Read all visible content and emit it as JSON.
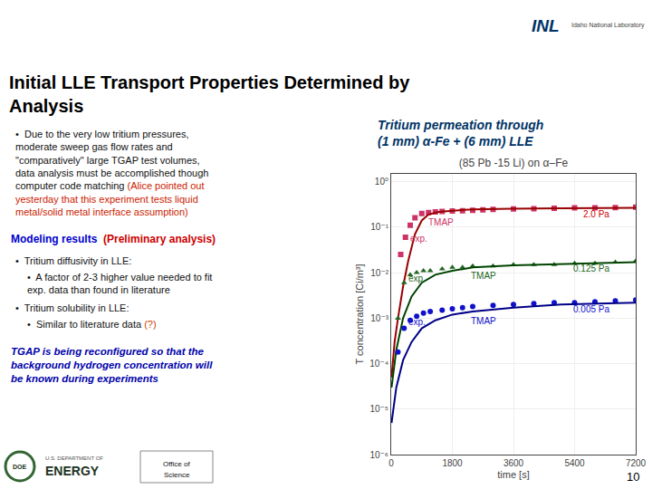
{
  "chart_data": {
    "type": "scatter",
    "title": "(85 Pb -15 Li) on α–Fe",
    "x_label": "time [s]",
    "y_label": "T concentration [Ci/m³]",
    "log": "y",
    "grid": true,
    "xlim": [
      0,
      7200
    ],
    "xticks": [
      0,
      1800,
      3600,
      5400,
      7200
    ],
    "ylim": [
      1e-06,
      1.5
    ],
    "yticks": [
      {
        "value": 1e-06,
        "label": "10⁻⁶"
      },
      {
        "value": 1e-05,
        "label": "10⁻⁵"
      },
      {
        "value": 0.0001,
        "label": "10⁻⁴"
      },
      {
        "value": 0.001,
        "label": "10⁻³"
      },
      {
        "value": 0.01,
        "label": "10⁻²"
      },
      {
        "value": 0.1,
        "label": "10⁻¹"
      },
      {
        "value": 1,
        "label": "10⁰"
      }
    ],
    "series": [
      {
        "type": "scatter",
        "color": "#cc3366",
        "marker": "square",
        "x": [
          280,
          420,
          560,
          700,
          900,
          1100,
          1300,
          1500,
          1800,
          2100,
          2400,
          2700,
          3000,
          3600,
          4200,
          4800,
          5400,
          6000,
          6600,
          7200
        ],
        "values": [
          0.025,
          0.06,
          0.11,
          0.16,
          0.2,
          0.21,
          0.215,
          0.22,
          0.225,
          0.23,
          0.235,
          0.24,
          0.245,
          0.25,
          0.255,
          0.26,
          0.265,
          0.265,
          0.27,
          0.275
        ]
      },
      {
        "type": "line",
        "color": "#990000",
        "line_style": "solid",
        "x": [
          10,
          100,
          200,
          350,
          500,
          700,
          900,
          1100,
          1400,
          1800,
          2400,
          3500,
          5000,
          7200
        ],
        "values": [
          5e-05,
          0.0003,
          0.001,
          0.005,
          0.018,
          0.07,
          0.14,
          0.19,
          0.215,
          0.23,
          0.245,
          0.255,
          0.26,
          0.265
        ]
      },
      {
        "type": "scatter",
        "color": "#226622",
        "marker": "triangle",
        "x": [
          200,
          380,
          560,
          750,
          950,
          1150,
          1500,
          1800,
          2100,
          2400,
          3000,
          3600,
          4200,
          4800,
          5400,
          6000,
          6600,
          7200
        ],
        "values": [
          0.001,
          0.006,
          0.009,
          0.01,
          0.011,
          0.011,
          0.012,
          0.013,
          0.013,
          0.014,
          0.014,
          0.015,
          0.015,
          0.015,
          0.016,
          0.016,
          0.017,
          0.018
        ]
      },
      {
        "type": "line",
        "color": "#004400",
        "line_style": "solid",
        "x": [
          10,
          150,
          350,
          600,
          900,
          1300,
          1800,
          2400,
          3600,
          5000,
          7200
        ],
        "values": [
          3e-05,
          0.0002,
          0.001,
          0.003,
          0.006,
          0.009,
          0.011,
          0.013,
          0.0145,
          0.0155,
          0.017
        ]
      },
      {
        "type": "scatter",
        "color": "#1111cc",
        "marker": "circle",
        "x": [
          200,
          380,
          560,
          750,
          950,
          1150,
          1500,
          1800,
          2100,
          2400,
          3000,
          3600,
          4200,
          4800,
          5400,
          6000,
          6600,
          7200
        ],
        "values": [
          0.00018,
          0.0006,
          0.0009,
          0.0011,
          0.0013,
          0.0014,
          0.0015,
          0.0016,
          0.0017,
          0.0018,
          0.0019,
          0.002,
          0.0021,
          0.0022,
          0.0022,
          0.0023,
          0.0024,
          0.0025
        ]
      },
      {
        "type": "line",
        "color": "#000088",
        "line_style": "solid",
        "x": [
          10,
          150,
          350,
          600,
          900,
          1300,
          1800,
          2400,
          3600,
          5000,
          7200
        ],
        "values": [
          5e-06,
          3e-05,
          0.00012,
          0.0003,
          0.0006,
          0.0009,
          0.0012,
          0.0014,
          0.0017,
          0.002,
          0.0022
        ]
      }
    ],
    "annotations": [
      {
        "text": "exp.",
        "x": 500,
        "y": 0.055,
        "color": "#cc3366"
      },
      {
        "text": "TMAP",
        "x": 1050,
        "y": 0.13,
        "color": "#cc3366"
      },
      {
        "text": "2.0 Pa",
        "x": 5600,
        "y": 0.195,
        "color": "#cc0000"
      },
      {
        "text": "exp.",
        "x": 450,
        "y": 0.0076,
        "color": "#226622"
      },
      {
        "text": "TMAP",
        "x": 2300,
        "y": 0.0085,
        "color": "#226622"
      },
      {
        "text": "0.125 Pa",
        "x": 5300,
        "y": 0.0125,
        "color": "#226622"
      },
      {
        "text": "exp.",
        "x": 450,
        "y": 0.00082,
        "color": "#1111cc"
      },
      {
        "text": "TMAP",
        "x": 2300,
        "y": 0.00088,
        "color": "#1111cc"
      },
      {
        "text": "0.005 Pa",
        "x": 5300,
        "y": 0.00155,
        "color": "#1111cc"
      },
      {
        "runs": [
          {
            "text": "Initial LLE Transport Properties Determined by\nAnalysis",
            "color": "#000000"
          }
        ]
      },
      {
        "runs": [
          {
            "text": "Tritium permeation through\n(1 mm) α-Fe + (6 mm) LLE",
            "color": "#003366"
          }
        ]
      },
      {
        "runs": [
          {
            "text": "•  Due to the very low tritium pressures,\nmoderate sweep gas flow rates and\n\"comparatively\" large TGAP test volumes,\ndata analysis must be accomplished though\ncomputer code matching ",
            "color": "#111111"
          },
          {
            "text": "(Alice pointed out\nyesterday that this experiment tests liquid\nmetal/solid metal interface assumption)",
            "color": "#cc2200"
          }
        ]
      },
      {
        "runs": [
          {
            "text": "Modeling results  ",
            "color": "#0000cc"
          },
          {
            "text": "(Preliminary analysis)",
            "color": "#cc0000"
          }
        ]
      },
      {
        "runs": [
          {
            "text": "•  Tritium diffusivity in LLE:",
            "color": "#111111"
          }
        ]
      },
      {
        "runs": [
          {
            "text": "•  A factor of 2-3 higher value needed to fit\nexp. data than found in literature",
            "color": "#111111"
          }
        ]
      },
      {
        "runs": [
          {
            "text": "•  Tritium solubility in LLE:",
            "color": "#111111"
          }
        ]
      },
      {
        "runs": [
          {
            "text": "•  Similar to literature data ",
            "color": "#111111"
          },
          {
            "text": "(?)",
            "color": "#cc4400"
          }
        ]
      },
      {
        "runs": [
          {
            "text": "TGAP is being reconfigured so that the\nbackground hydrogen concentration will\nbe known during experiments",
            "color": "#0000aa"
          }
        ]
      },
      {
        "runs": [
          {
            "text": "10",
            "color": "#000000"
          }
        ]
      },
      {
        "runs": [
          {
            "text": "INL",
            "color": "#003366"
          }
        ]
      },
      {
        "runs": [
          {
            "text": "Idaho National Laboratory",
            "color": "#444444"
          }
        ]
      },
      {
        "runs": [
          {
            "text": "DOE",
            "color": "#223322"
          }
        ]
      },
      {
        "runs": [
          {
            "text": "U.S. DEPARTMENT OF",
            "color": "#555555"
          }
        ]
      },
      {
        "runs": [
          {
            "text": "ENERGY",
            "color": "#223322"
          }
        ]
      },
      {
        "runs": [
          {
            "text": "Office of",
            "color": "#111111"
          }
        ]
      },
      {
        "runs": [
          {
            "text": "Science",
            "color": "#111111"
          }
        ]
      }
    ]
  }
}
